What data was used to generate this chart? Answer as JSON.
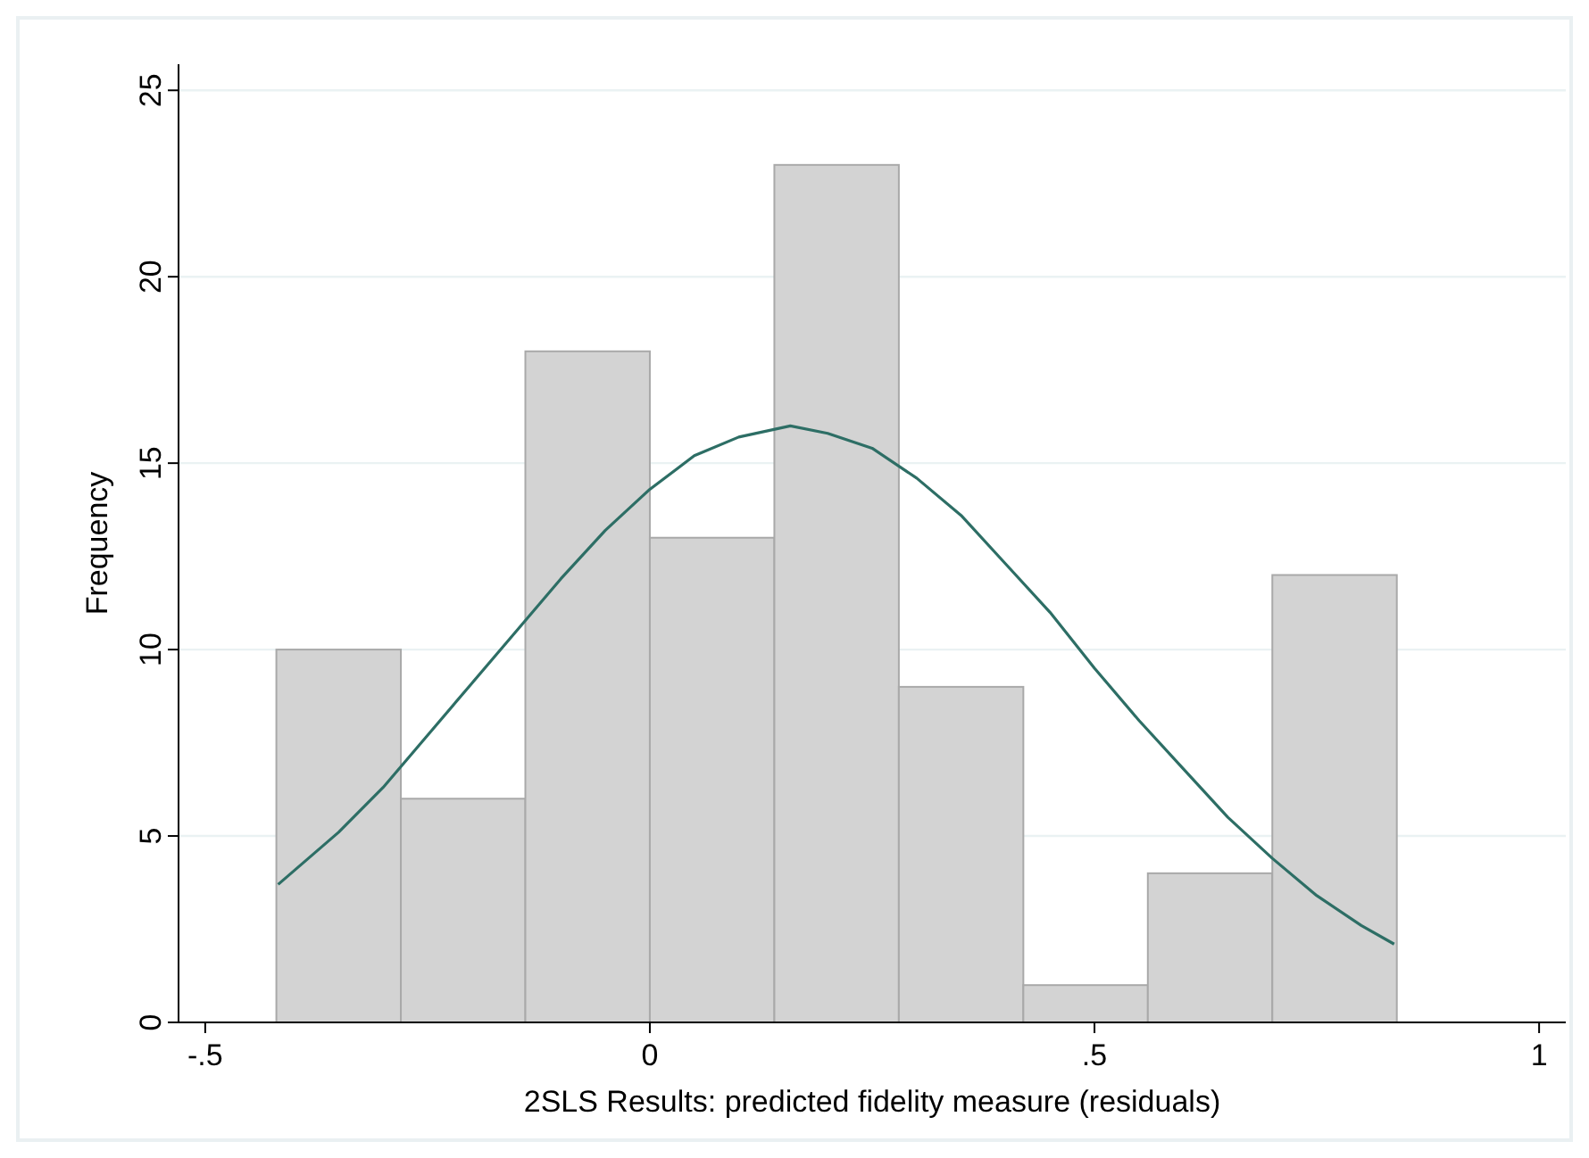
{
  "chart_data": {
    "type": "histogram",
    "xlabel": "2SLS Results: predicted fidelity measure (residuals)",
    "ylabel": "Frequency",
    "xlim": [
      -0.53,
      1.03
    ],
    "ylim": [
      0,
      25.7
    ],
    "xticks": [
      {
        "value": -0.5,
        "label": "-.5"
      },
      0,
      {
        "value": 0.5,
        "label": ".5"
      },
      1
    ],
    "yticks": [
      0,
      5,
      10,
      15,
      20,
      25
    ],
    "grid": "y",
    "series": [
      {
        "color": "#d3d3d3",
        "bins": [
          -0.42,
          -0.28,
          -0.14,
          0,
          0.14,
          0.28,
          0.42,
          0.56,
          0.7,
          0.84
        ],
        "values": [
          10,
          6,
          18,
          13,
          23,
          9,
          1,
          4,
          12
        ]
      },
      {
        "type": "line",
        "color": "#2d6e65",
        "x": [
          -0.418,
          -0.35,
          -0.3,
          -0.25,
          -0.2,
          -0.15,
          -0.1,
          -0.05,
          0,
          0.05,
          0.1,
          0.158,
          0.2,
          0.25,
          0.3,
          0.35,
          0.4,
          0.45,
          0.5,
          0.55,
          0.6,
          0.65,
          0.7,
          0.75,
          0.8,
          0.837
        ],
        "values": [
          3.7,
          5.1,
          6.3,
          7.7,
          9.1,
          10.5,
          11.9,
          13.2,
          14.3,
          15.2,
          15.7,
          16.0,
          15.8,
          15.4,
          14.6,
          13.6,
          12.3,
          11.0,
          9.5,
          8.1,
          6.8,
          5.5,
          4.4,
          3.4,
          2.6,
          2.1
        ]
      }
    ]
  }
}
